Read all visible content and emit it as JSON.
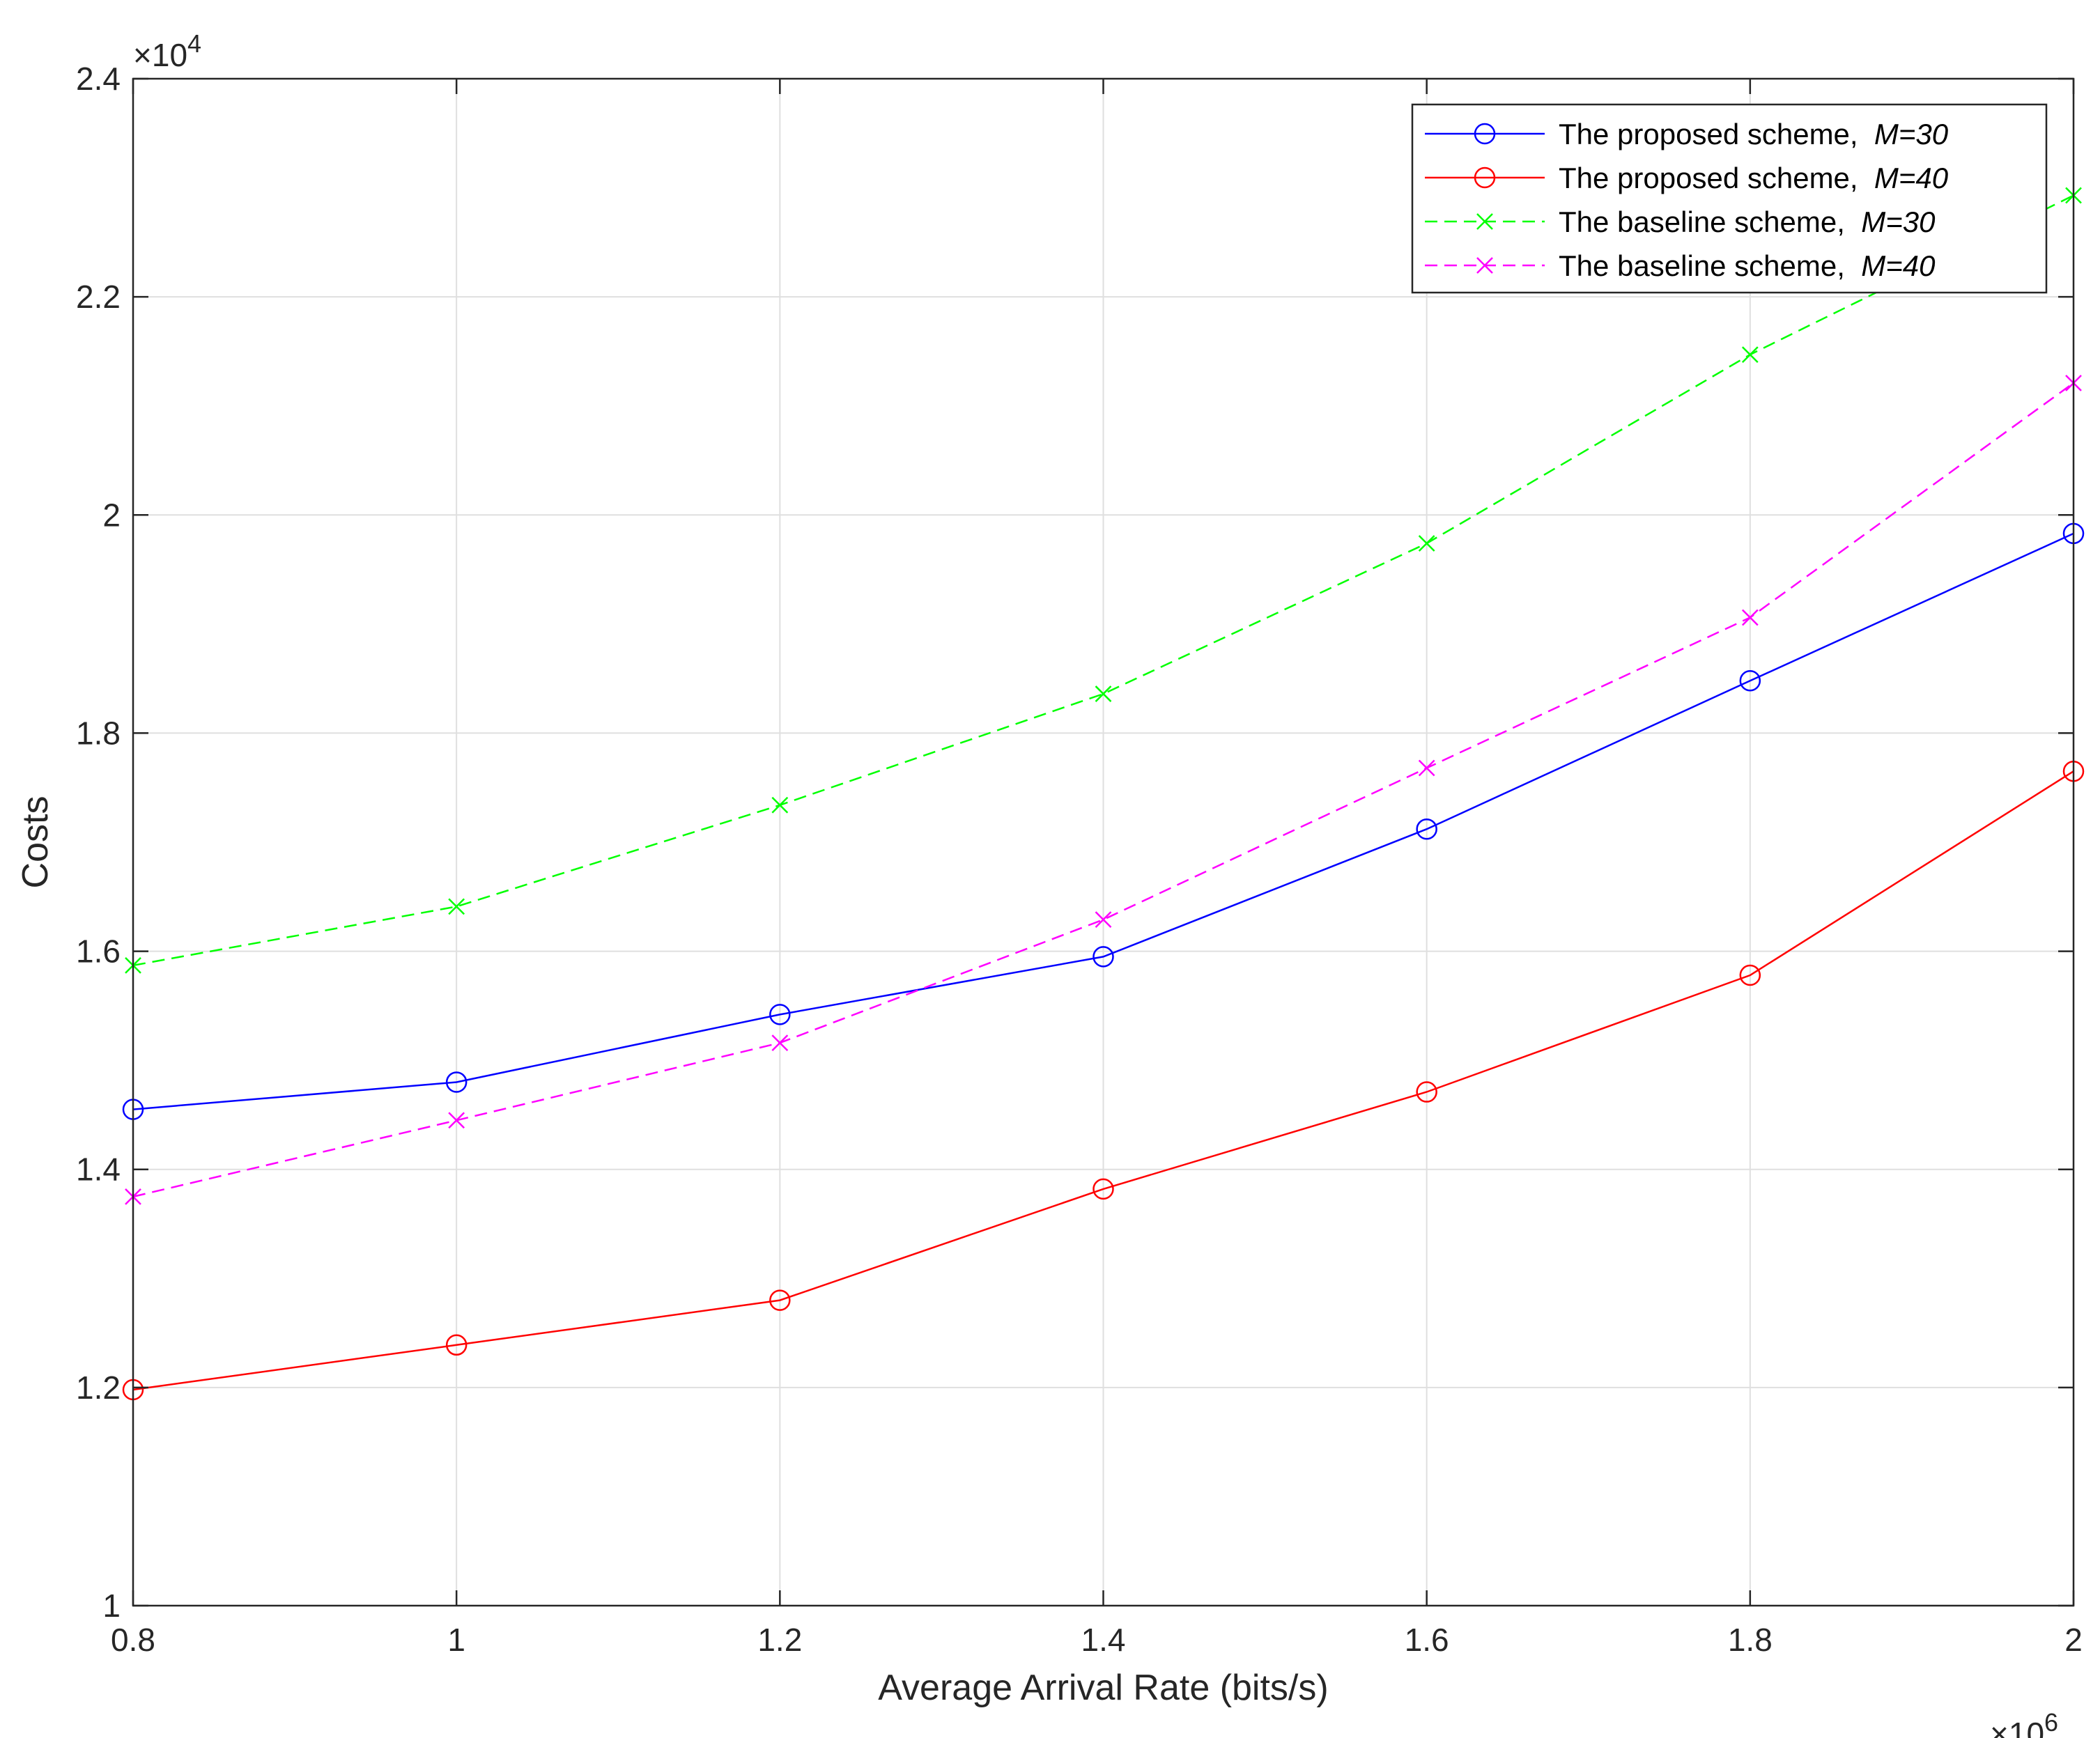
{
  "chart_data": {
    "type": "line",
    "title": "",
    "xlabel": "Average Arrival Rate (bits/s)",
    "ylabel": "Costs",
    "x_exponent_label": {
      "base": "×10",
      "exp": "6"
    },
    "y_exponent_label": {
      "base": "×10",
      "exp": "4"
    },
    "x": [
      0.8,
      1.0,
      1.2,
      1.4,
      1.6,
      1.8,
      2.0
    ],
    "xlim": [
      0.8,
      2.0
    ],
    "ylim": [
      1.0,
      2.4
    ],
    "x_ticks": [
      0.8,
      1.0,
      1.2,
      1.4,
      1.6,
      1.8,
      2.0
    ],
    "x_tick_labels": [
      "0.8",
      "1",
      "1.2",
      "1.4",
      "1.6",
      "1.8",
      "2"
    ],
    "y_ticks": [
      1.0,
      1.2,
      1.4,
      1.6,
      1.8,
      2.0,
      2.2,
      2.4
    ],
    "y_tick_labels": [
      "1",
      "1.2",
      "1.4",
      "1.6",
      "1.8",
      "2",
      "2.2",
      "2.4"
    ],
    "grid": true,
    "legend_position": "top-right",
    "series": [
      {
        "name": "The proposed scheme,",
        "name_param": "M=30",
        "values": [
          1.455,
          1.48,
          1.542,
          1.595,
          1.712,
          1.848,
          1.983
        ],
        "color": "#0000ff",
        "line_style": "solid",
        "marker": "circle"
      },
      {
        "name": "The proposed scheme,",
        "name_param": "M=40",
        "values": [
          1.198,
          1.239,
          1.28,
          1.382,
          1.471,
          1.578,
          1.765
        ],
        "color": "#ff0000",
        "line_style": "solid",
        "marker": "circle"
      },
      {
        "name": "The baseline scheme,",
        "name_param": "M=30",
        "values": [
          1.587,
          1.641,
          1.734,
          1.836,
          1.974,
          2.147,
          2.293
        ],
        "color": "#00ff00",
        "line_style": "dashed",
        "marker": "x"
      },
      {
        "name": "The baseline scheme,",
        "name_param": "M=40",
        "values": [
          1.375,
          1.445,
          1.516,
          1.629,
          1.768,
          1.906,
          2.121
        ],
        "color": "#ff00ff",
        "line_style": "dashed",
        "marker": "x"
      }
    ]
  }
}
